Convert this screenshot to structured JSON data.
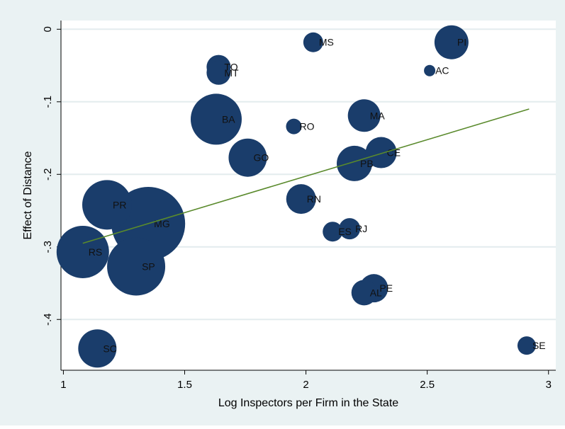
{
  "chart_data": {
    "type": "scatter",
    "xlabel": "Log Inspectors per Firm in the State",
    "ylabel": "Effect of Distance",
    "xlim": [
      0.99,
      3.03
    ],
    "ylim": [
      -0.47,
      0.012
    ],
    "x_ticks": [
      "1",
      "1.5",
      "2",
      "2.5",
      "3"
    ],
    "y_ticks": [
      "0",
      "-.1",
      "-.2",
      "-.3",
      "-.4"
    ],
    "x_tick_values": [
      1,
      1.5,
      2,
      2.5,
      3
    ],
    "y_tick_values": [
      0,
      -0.1,
      -0.2,
      -0.3,
      -0.4
    ],
    "grid": "horizontal",
    "marker_color": "#1a3d6b",
    "fit_line_color": "#5a8a2c",
    "points": [
      {
        "label": "MS",
        "x": 2.03,
        "y": -0.018,
        "size": 14
      },
      {
        "label": "PI",
        "x": 2.6,
        "y": -0.018,
        "size": 24
      },
      {
        "label": "TO",
        "x": 1.64,
        "y": -0.052,
        "size": 17
      },
      {
        "label": "MT",
        "x": 1.64,
        "y": -0.06,
        "size": 17
      },
      {
        "label": "AC",
        "x": 2.51,
        "y": -0.057,
        "size": 8
      },
      {
        "label": "BA",
        "x": 1.63,
        "y": -0.124,
        "size": 36
      },
      {
        "label": "RO",
        "x": 1.95,
        "y": -0.134,
        "size": 11
      },
      {
        "label": "MA",
        "x": 2.24,
        "y": -0.119,
        "size": 23
      },
      {
        "label": "CE",
        "x": 2.31,
        "y": -0.17,
        "size": 22
      },
      {
        "label": "GO",
        "x": 1.76,
        "y": -0.177,
        "size": 27
      },
      {
        "label": "PB",
        "x": 2.2,
        "y": -0.185,
        "size": 25
      },
      {
        "label": "PR",
        "x": 1.18,
        "y": -0.242,
        "size": 35
      },
      {
        "label": "RN",
        "x": 1.98,
        "y": -0.234,
        "size": 21
      },
      {
        "label": "MG",
        "x": 1.35,
        "y": -0.268,
        "size": 52
      },
      {
        "label": "ES",
        "x": 2.11,
        "y": -0.279,
        "size": 14
      },
      {
        "label": "RJ",
        "x": 2.18,
        "y": -0.275,
        "size": 15
      },
      {
        "label": "RS",
        "x": 1.08,
        "y": -0.307,
        "size": 37
      },
      {
        "label": "SP",
        "x": 1.3,
        "y": -0.327,
        "size": 41
      },
      {
        "label": "AL",
        "x": 2.24,
        "y": -0.363,
        "size": 18
      },
      {
        "label": "PE",
        "x": 2.28,
        "y": -0.357,
        "size": 20
      },
      {
        "label": "SC",
        "x": 1.14,
        "y": -0.44,
        "size": 27
      },
      {
        "label": "SE",
        "x": 2.91,
        "y": -0.436,
        "size": 13
      }
    ],
    "fit_line": {
      "x": [
        1.08,
        2.92
      ],
      "y": [
        -0.295,
        -0.11
      ]
    }
  }
}
